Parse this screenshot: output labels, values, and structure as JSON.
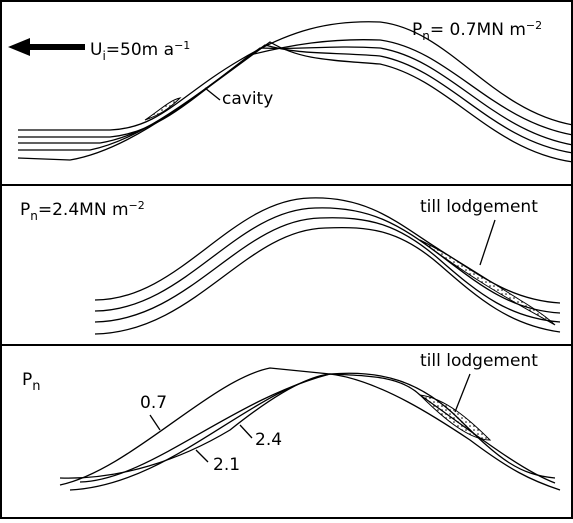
{
  "panels": [
    {
      "labels": {
        "velocity": {
          "symbol": "U",
          "subscript": "i",
          "text": "=50m a",
          "superscript": "−1"
        },
        "pressure": {
          "symbol": "P",
          "subscript": "n",
          "text": "= 0.7MN m",
          "superscript": "−2"
        },
        "annotation": "cavity"
      }
    },
    {
      "labels": {
        "pressure": {
          "symbol": "P",
          "subscript": "n",
          "text": "=2.4MN m",
          "superscript": "−2"
        },
        "annotation": "till lodgement"
      }
    },
    {
      "labels": {
        "pressure": {
          "symbol": "P",
          "subscript": "n"
        },
        "annotation": "till lodgement",
        "curves": [
          "0.7",
          "2.1",
          "2.4"
        ]
      }
    }
  ]
}
